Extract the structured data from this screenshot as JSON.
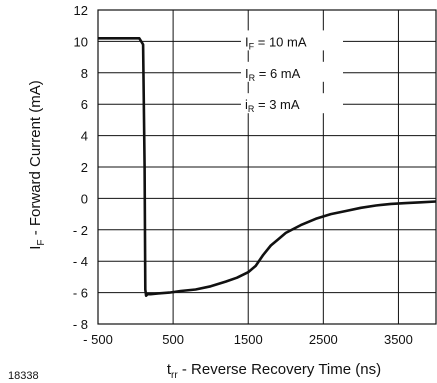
{
  "figure_id": "18338",
  "chart_data": {
    "type": "line",
    "xlabel": {
      "prefix": "t",
      "sub": "rr",
      "rest": " - Reverse Recovery Time (ns)"
    },
    "ylabel": {
      "prefix": "I",
      "sub": "F",
      "rest": " - Forward Current (mA)"
    },
    "xlim": [
      -500,
      4000
    ],
    "ylim": [
      -8,
      12
    ],
    "xticks": [
      -500,
      500,
      1500,
      2500,
      3500
    ],
    "xtick_labels": [
      "- 500",
      "500",
      "1500",
      "2500",
      "3500"
    ],
    "yticks": [
      12,
      10,
      8,
      6,
      4,
      2,
      0,
      -2,
      -4,
      -6,
      -8
    ],
    "ytick_labels": [
      "12",
      "10",
      "8",
      "6",
      "4",
      "2",
      "0",
      "- 2",
      "- 4",
      "- 6",
      "- 8"
    ],
    "grid": true,
    "annotations": [
      {
        "prefix": "I",
        "sub": "F",
        "rest": " = 10 mA",
        "y": 10
      },
      {
        "prefix": "I",
        "sub": "R",
        "rest": " =   6 mA",
        "y": 8
      },
      {
        "prefix": "i",
        "sub": "R",
        "rest": " =   3 mA",
        "y": 6
      }
    ],
    "series": [
      {
        "x": [
          -500,
          -450,
          -300,
          -100,
          50,
          100,
          120,
          130,
          140,
          160,
          200,
          300,
          450,
          600,
          800,
          1000,
          1200,
          1350,
          1500,
          1600,
          1700,
          1800,
          1900,
          2000,
          2200,
          2400,
          2600,
          2800,
          3000,
          3200,
          3400,
          3600,
          3800,
          4000
        ],
        "y": [
          10.2,
          10.2,
          10.2,
          10.2,
          10.2,
          9.8,
          2.0,
          -5.8,
          -6.2,
          -6.1,
          -6.1,
          -6.05,
          -6.0,
          -5.9,
          -5.8,
          -5.6,
          -5.3,
          -5.05,
          -4.7,
          -4.3,
          -3.6,
          -3.0,
          -2.6,
          -2.2,
          -1.7,
          -1.3,
          -1.0,
          -0.8,
          -0.6,
          -0.45,
          -0.35,
          -0.3,
          -0.25,
          -0.2
        ]
      }
    ]
  }
}
